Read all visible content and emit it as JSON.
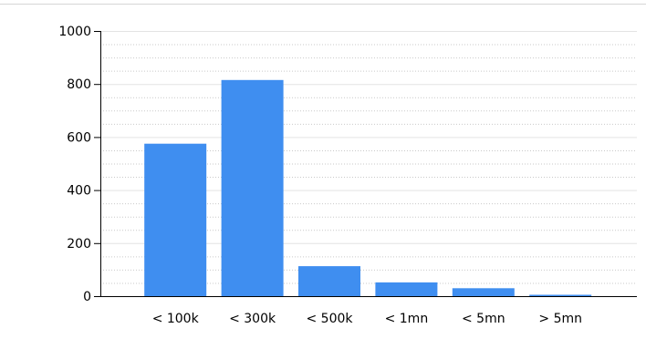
{
  "chart_data": {
    "type": "bar",
    "categories": [
      "< 100k",
      "< 300k",
      "< 500k",
      "< 1mn",
      "< 5mn",
      "> 5mn"
    ],
    "values": [
      575,
      815,
      113,
      52,
      30,
      5
    ],
    "title": "",
    "xlabel": "",
    "ylabel": "",
    "ylim": [
      0,
      1000
    ],
    "yticks": [
      "0",
      "200",
      "400",
      "600",
      "800",
      "1000"
    ],
    "grid": true,
    "legend": "none",
    "colors": {
      "bar": "#3f8ef0",
      "axis": "#000000",
      "grid": "#e3e3e3",
      "minor_grid": "#c9c9c9"
    }
  }
}
